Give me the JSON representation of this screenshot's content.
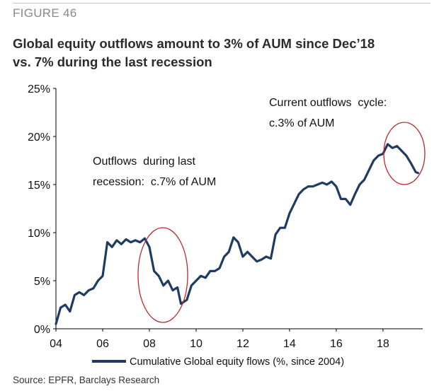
{
  "figure_label": "FIGURE 46",
  "title_line1": "Global equity outflows amount to 3% of AUM since Dec’18",
  "title_line2": "vs. 7% during the last recession",
  "source": "Source: EPFR, Barclays Research",
  "colors": {
    "line": "#1f3a63",
    "circle": "#c0272d",
    "axis": "#000000"
  },
  "chart_data": {
    "type": "line",
    "title": "Global equity outflows amount to 3% of AUM since Dec’18 vs. 7% during the last recession",
    "xlabel": "",
    "ylabel": "",
    "xlim": [
      2004,
      2019.7
    ],
    "ylim": [
      0,
      25
    ],
    "x_ticks": [
      2004,
      2006,
      2008,
      2010,
      2012,
      2014,
      2016,
      2018
    ],
    "x_tick_labels": [
      "04",
      "06",
      "08",
      "10",
      "12",
      "14",
      "16",
      "18"
    ],
    "y_ticks": [
      0,
      5,
      10,
      15,
      20,
      25
    ],
    "y_tick_labels": [
      "0%",
      "5%",
      "10%",
      "15%",
      "20%",
      "25%"
    ],
    "legend": {
      "position": "bottom",
      "entries": [
        "Cumulative Global equity flows (%, since 2004)"
      ]
    },
    "series": [
      {
        "name": "Cumulative Global equity flows (%, since 2004)",
        "x": [
          2004.0,
          2004.2,
          2004.4,
          2004.6,
          2004.8,
          2005.0,
          2005.2,
          2005.4,
          2005.6,
          2005.8,
          2006.0,
          2006.2,
          2006.4,
          2006.6,
          2006.8,
          2007.0,
          2007.2,
          2007.4,
          2007.6,
          2007.8,
          2008.0,
          2008.2,
          2008.4,
          2008.6,
          2008.8,
          2009.0,
          2009.2,
          2009.35,
          2009.6,
          2009.8,
          2010.0,
          2010.2,
          2010.4,
          2010.6,
          2010.8,
          2011.0,
          2011.2,
          2011.4,
          2011.6,
          2011.8,
          2012.0,
          2012.2,
          2012.4,
          2012.6,
          2012.8,
          2013.0,
          2013.2,
          2013.4,
          2013.6,
          2013.8,
          2014.0,
          2014.2,
          2014.4,
          2014.6,
          2014.8,
          2015.0,
          2015.2,
          2015.4,
          2015.6,
          2015.8,
          2016.0,
          2016.2,
          2016.4,
          2016.6,
          2016.8,
          2017.0,
          2017.2,
          2017.4,
          2017.6,
          2017.8,
          2018.0,
          2018.2,
          2018.4,
          2018.6,
          2018.8,
          2019.0,
          2019.2,
          2019.4,
          2019.5
        ],
        "values": [
          0.5,
          2.2,
          2.5,
          1.8,
          3.5,
          3.8,
          3.5,
          4.0,
          4.2,
          5.0,
          5.5,
          9.0,
          8.5,
          9.2,
          8.8,
          9.3,
          9.0,
          9.2,
          9.0,
          9.4,
          8.5,
          6.0,
          5.5,
          4.5,
          5.0,
          4.0,
          4.3,
          2.6,
          3.0,
          4.5,
          5.0,
          5.5,
          5.3,
          6.0,
          6.0,
          6.3,
          7.5,
          8.0,
          9.5,
          9.0,
          7.5,
          8.0,
          7.5,
          7.0,
          7.2,
          7.5,
          7.3,
          9.8,
          10.5,
          10.5,
          12.0,
          13.0,
          14.0,
          14.5,
          14.8,
          14.8,
          15.0,
          15.2,
          15.0,
          15.3,
          14.8,
          13.5,
          13.5,
          12.9,
          14.0,
          15.0,
          15.5,
          16.5,
          17.5,
          18.0,
          18.2,
          19.2,
          18.8,
          19.0,
          18.5,
          18.0,
          17.2,
          16.3,
          16.2
        ]
      }
    ],
    "annotations": [
      {
        "text_line1": "Outflows  during last",
        "text_line2": "recession:  c.7% of AUM",
        "at": [
          2008.8,
          6.0
        ]
      },
      {
        "text_line1": "Current outflows  cycle:",
        "text_line2": "c.3% of AUM",
        "at": [
          2019.0,
          17.5
        ]
      }
    ]
  }
}
